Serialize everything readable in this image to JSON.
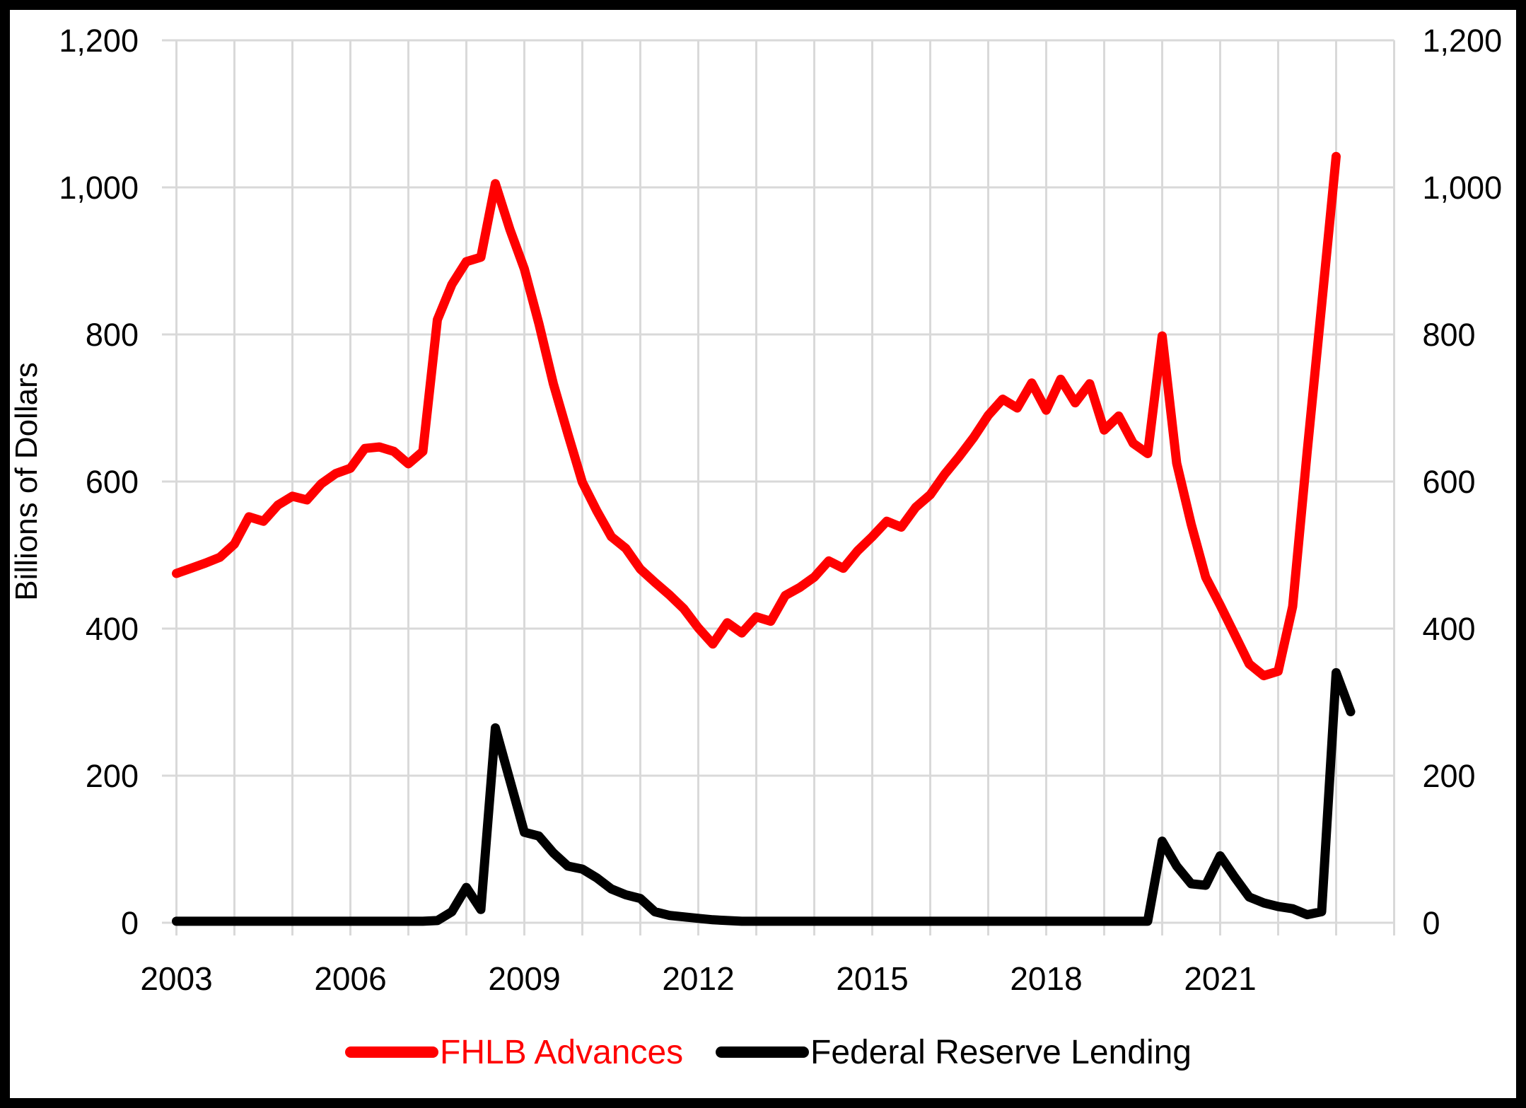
{
  "figure": {
    "y_axis_title": "Billions of Dollars"
  },
  "legend": [
    {
      "label": "FHLB Advances",
      "color": "#ff0000"
    },
    {
      "label": "Federal Reserve Lending",
      "color": "#000000"
    }
  ],
  "colors": {
    "background": "#ffffff",
    "frame": "#000000",
    "gridline": "#d9d9d9",
    "tick_text": "#000000",
    "fhlb_red": "#ff0000",
    "fed_black": "#000000"
  },
  "chart_data": {
    "type": "line",
    "title": "",
    "xlabel": "",
    "ylabel": "Billions of Dollars",
    "xlim": [
      2002.75,
      2024.0
    ],
    "ylim": [
      0,
      1200
    ],
    "grid": true,
    "legend_position": "bottom",
    "y_ticks": [
      0,
      200,
      400,
      600,
      800,
      1000,
      1200
    ],
    "y_tick_labels": [
      "0",
      "200",
      "400",
      "600",
      "800",
      "1,000",
      "1,200"
    ],
    "y_axis_sides": [
      "left",
      "right"
    ],
    "x_gridline_years": [
      2003,
      2004,
      2005,
      2006,
      2007,
      2008,
      2009,
      2010,
      2011,
      2012,
      2013,
      2014,
      2015,
      2016,
      2017,
      2018,
      2019,
      2020,
      2021,
      2022,
      2023,
      2024
    ],
    "x_labels": [
      {
        "year": 2003,
        "text": "2003"
      },
      {
        "year": 2006,
        "text": "2006"
      },
      {
        "year": 2009,
        "text": "2009"
      },
      {
        "year": 2012,
        "text": "2012"
      },
      {
        "year": 2015,
        "text": "2015"
      },
      {
        "year": 2018,
        "text": "2018"
      },
      {
        "year": 2021,
        "text": "2021"
      }
    ],
    "series": [
      {
        "name": "Federal Reserve Lending",
        "color": "#000000",
        "start": 2003.0,
        "step": 0.25,
        "values": [
          2,
          2,
          2,
          2,
          2,
          2,
          2,
          2,
          2,
          2,
          2,
          2,
          2,
          2,
          2,
          2,
          2,
          2,
          3,
          15,
          48,
          18,
          265,
          194,
          123,
          118,
          95,
          77,
          73,
          61,
          46,
          38,
          33,
          15,
          10,
          8,
          6,
          4,
          3,
          2,
          2,
          2,
          2,
          2,
          2,
          2,
          2,
          2,
          2,
          2,
          2,
          2,
          2,
          2,
          2,
          2,
          2,
          2,
          2,
          2,
          2,
          2,
          2,
          2,
          2,
          2,
          2,
          2,
          111,
          77,
          53,
          51,
          91,
          62,
          35,
          27,
          22,
          19,
          11,
          15,
          340,
          287
        ]
      },
      {
        "name": "FHLB Advances",
        "color": "#ff0000",
        "start": 2003.0,
        "step": 0.25,
        "values": [
          475,
          482,
          489,
          497,
          515,
          552,
          546,
          568,
          580,
          575,
          597,
          611,
          618,
          645,
          647,
          641,
          624,
          641,
          820,
          868,
          899,
          905,
          1005,
          943,
          889,
          815,
          733,
          665,
          599,
          560,
          525,
          509,
          481,
          463,
          446,
          427,
          401,
          379,
          408,
          394,
          416,
          410,
          445,
          456,
          470,
          492,
          482,
          506,
          525,
          546,
          538,
          565,
          582,
          610,
          634,
          660,
          690,
          712,
          700,
          734,
          697,
          739,
          707,
          733,
          670,
          689,
          652,
          638,
          798,
          625,
          542,
          470,
          432,
          392,
          352,
          336,
          342,
          430,
          640,
          840,
          1042
        ]
      }
    ]
  }
}
